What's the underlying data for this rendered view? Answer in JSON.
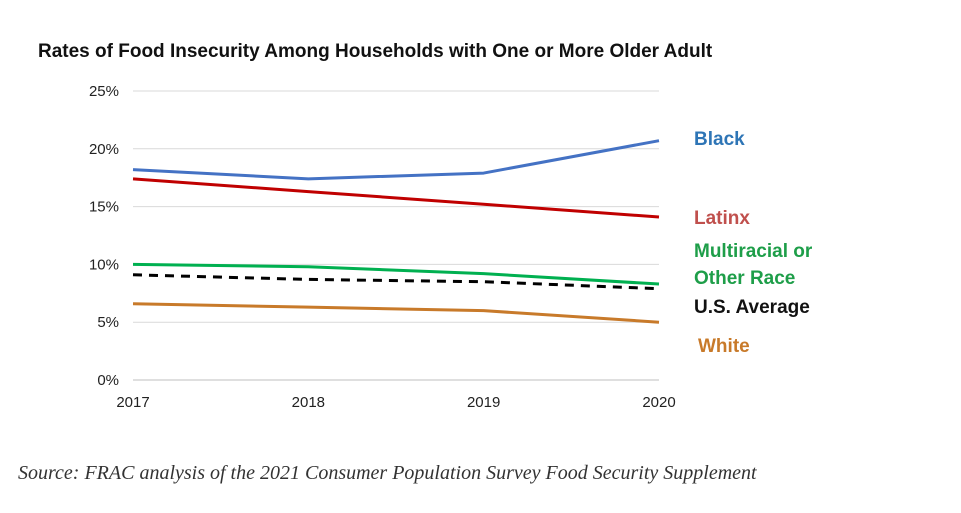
{
  "chart_data": {
    "type": "line",
    "title": "Rates of Food Insecurity Among Households with One or More Older Adult",
    "x": [
      "2017",
      "2018",
      "2019",
      "2020"
    ],
    "y_ticks": [
      "0%",
      "5%",
      "10%",
      "15%",
      "20%",
      "25%"
    ],
    "ylim": [
      0,
      25
    ],
    "grid": true,
    "legend": "inline labels to the right of lines",
    "series": [
      {
        "name": "Black",
        "label_lines": [
          "Black"
        ],
        "values": [
          18.2,
          17.4,
          17.9,
          20.7
        ],
        "color": "#4472c4",
        "label_color": "#2e75b6",
        "dashed": false
      },
      {
        "name": "Latinx",
        "label_lines": [
          "Latinx"
        ],
        "values": [
          17.4,
          16.3,
          15.2,
          14.1
        ],
        "color": "#c00000",
        "label_color": "#c0504d",
        "dashed": false
      },
      {
        "name": "Multiracial or Other Race",
        "label_lines": [
          "Multiracial or",
          "Other Race"
        ],
        "values": [
          10.0,
          9.8,
          9.2,
          8.3
        ],
        "color": "#00b050",
        "label_color": "#1e9e49",
        "dashed": false
      },
      {
        "name": "U.S. Average",
        "label_lines": [
          "U.S. Average"
        ],
        "values": [
          9.1,
          8.7,
          8.5,
          7.9
        ],
        "color": "#000000",
        "label_color": "#111111",
        "dashed": true
      },
      {
        "name": "White",
        "label_lines": [
          "White"
        ],
        "values": [
          6.6,
          6.3,
          6.0,
          5.0
        ],
        "color": "#c87a2a",
        "label_color": "#c87a2a",
        "dashed": false
      }
    ]
  },
  "source": "Source: FRAC analysis of the 2021 Consumer Population Survey Food Security Supplement"
}
